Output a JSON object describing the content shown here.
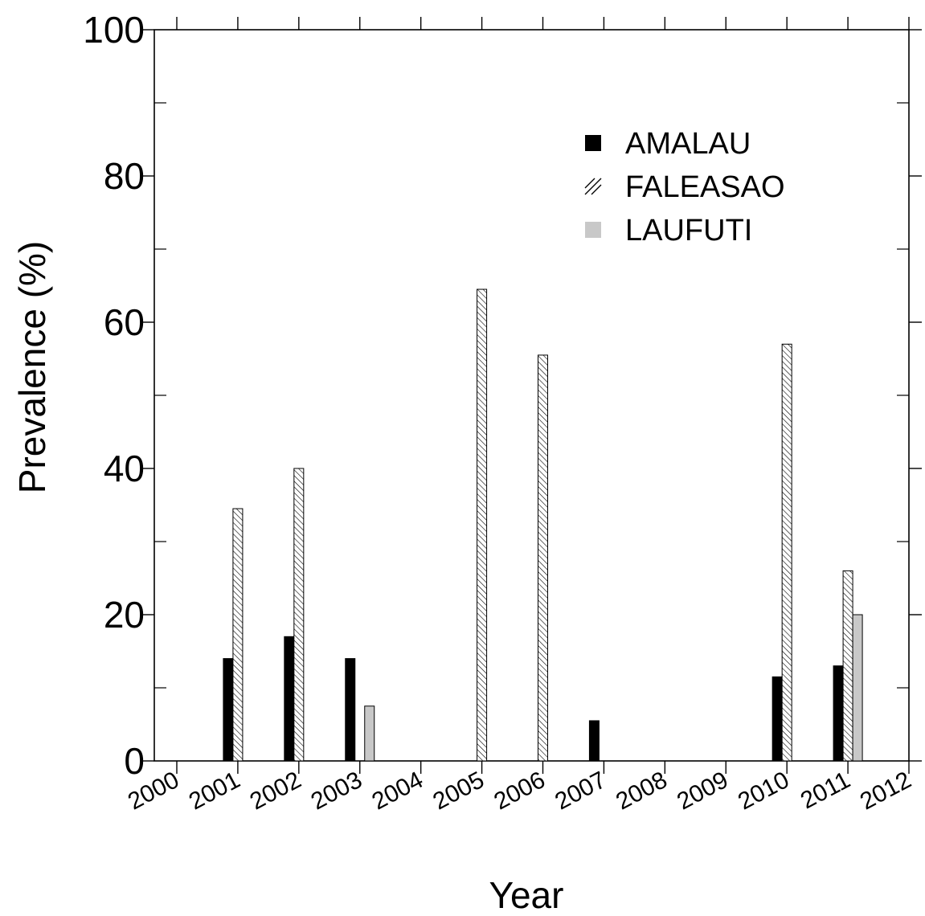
{
  "chart_data": {
    "type": "bar",
    "title": "",
    "xlabel": "Year",
    "ylabel": "Prevalence (%)",
    "ylim": [
      0,
      100
    ],
    "xlim": [
      2000,
      2012
    ],
    "x_ticks": [
      "2000",
      "2001",
      "2002",
      "2003",
      "2004",
      "2005",
      "2006",
      "2007",
      "2008",
      "2009",
      "2010",
      "2011",
      "2012"
    ],
    "y_ticks": [
      "0",
      "20",
      "40",
      "60",
      "80",
      "100"
    ],
    "y_minor_ticks": [
      10,
      30,
      50,
      70,
      90
    ],
    "grid": false,
    "legend_position": "top-right",
    "series": [
      {
        "name": "AMALAU",
        "fill": "solid-black",
        "color": "#000000",
        "points": [
          {
            "x": 2001,
            "y": 14
          },
          {
            "x": 2002,
            "y": 17
          },
          {
            "x": 2003,
            "y": 14
          },
          {
            "x": 2007,
            "y": 5.5
          },
          {
            "x": 2010,
            "y": 11.5
          },
          {
            "x": 2011,
            "y": 13
          }
        ]
      },
      {
        "name": "FALEASAO",
        "fill": "hatched",
        "color": "#000000",
        "points": [
          {
            "x": 2001,
            "y": 34.5
          },
          {
            "x": 2002,
            "y": 40
          },
          {
            "x": 2005,
            "y": 64.5
          },
          {
            "x": 2006,
            "y": 55.5
          },
          {
            "x": 2010,
            "y": 57
          },
          {
            "x": 2011,
            "y": 26
          }
        ]
      },
      {
        "name": "LAUFUTI",
        "fill": "solid-gray",
        "color": "#c8c8c8",
        "points": [
          {
            "x": 2003,
            "y": 7.5
          },
          {
            "x": 2011,
            "y": 20
          }
        ]
      }
    ]
  }
}
